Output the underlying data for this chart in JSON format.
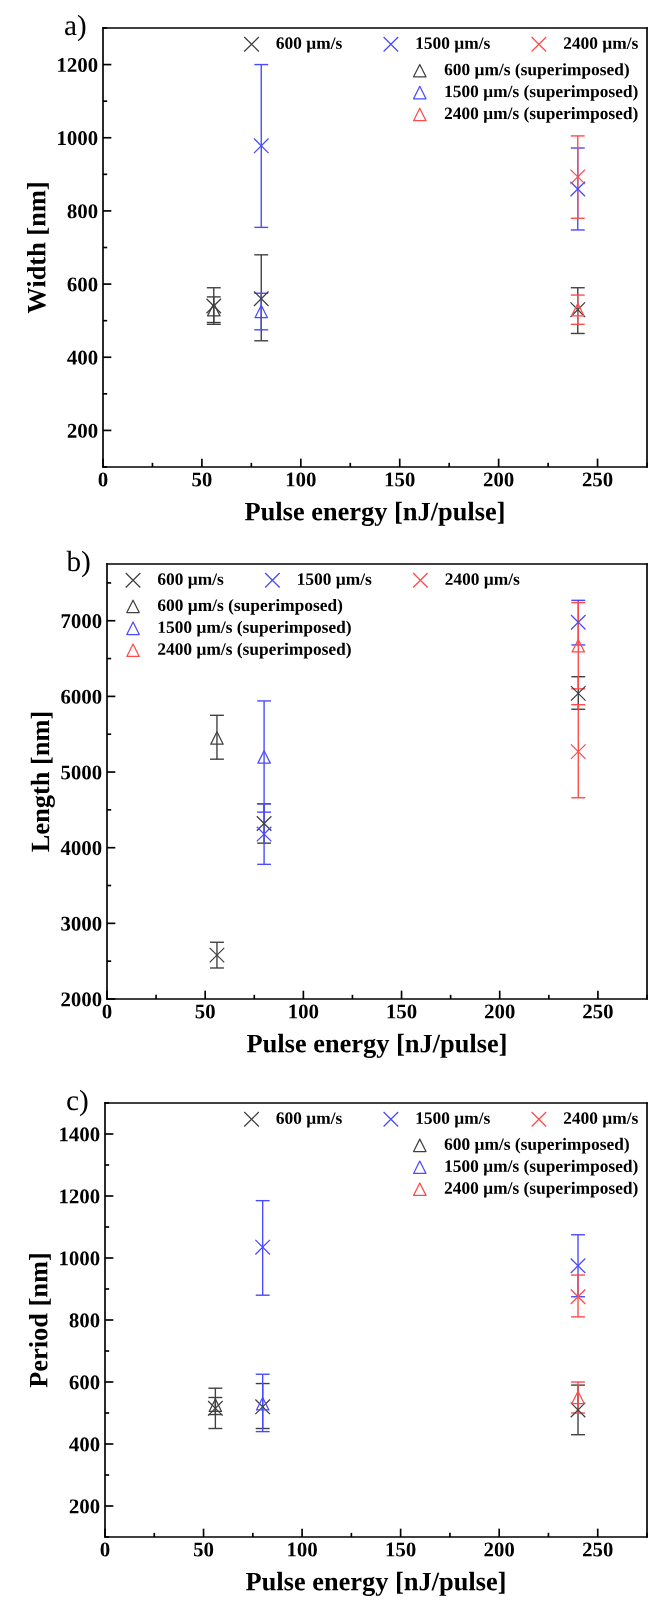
{
  "chart_data": [
    {
      "type": "scatter",
      "title": "a)",
      "xlabel": "Pulse energy [nJ/pulse]",
      "ylabel": "Width [nm]",
      "xlim": [
        0,
        275
      ],
      "xticks": [
        0,
        50,
        100,
        150,
        200,
        250
      ],
      "ylim": [
        100,
        1300
      ],
      "yticks": [
        200,
        400,
        600,
        800,
        1000,
        1200
      ],
      "legend": "top right",
      "grid": false,
      "series": [
        {
          "name": "600 µm/s",
          "color": "#404040",
          "marker": "cross",
          "x": [
            56,
            80,
            240
          ],
          "values": [
            540,
            560,
            530
          ],
          "errors": [
            [
              490,
              590
            ],
            [
              445,
              680
            ],
            [
              465,
              590
            ]
          ]
        },
        {
          "name": "1500 µm/s",
          "color": "#4a4aff",
          "marker": "cross",
          "x": [
            80,
            240
          ],
          "values": [
            978,
            860
          ],
          "errors": [
            [
              755,
              1200
            ],
            [
              748,
              972
            ]
          ]
        },
        {
          "name": "2400 µm/s",
          "color": "#ff4a4a",
          "marker": "cross",
          "x": [
            240
          ],
          "values": [
            893
          ],
          "errors": [
            [
              780,
              1005
            ]
          ]
        },
        {
          "name": "600 µm/s (superimposed)",
          "color": "#404040",
          "marker": "triangle",
          "x": [
            56
          ],
          "values": [
            530
          ],
          "errors": [
            [
              495,
              565
            ]
          ]
        },
        {
          "name": "1500 µm/s (superimposed)",
          "color": "#4a4aff",
          "marker": "triangle",
          "x": [
            80
          ],
          "values": [
            525
          ],
          "errors": [
            [
              475,
              575
            ]
          ]
        },
        {
          "name": "2400 µm/s (superimposed)",
          "color": "#ff4a4a",
          "marker": "triangle",
          "x": [
            240
          ],
          "values": [
            530
          ],
          "errors": [
            [
              490,
              570
            ]
          ]
        }
      ]
    },
    {
      "type": "scatter",
      "title": "b)",
      "xlabel": "Pulse energy [nJ/pulse]",
      "ylabel": "Length [nm]",
      "xlim": [
        0,
        275
      ],
      "xticks": [
        0,
        50,
        100,
        150,
        200,
        250
      ],
      "ylim": [
        2000,
        7750
      ],
      "yticks": [
        2000,
        3000,
        4000,
        5000,
        6000,
        7000
      ],
      "legend": "top left",
      "grid": false,
      "series": [
        {
          "name": "600 µm/s",
          "color": "#404040",
          "marker": "cross",
          "x": [
            56,
            80,
            240
          ],
          "values": [
            2580,
            4320,
            6040
          ],
          "errors": [
            [
              2410,
              2750
            ],
            [
              4060,
              4580
            ],
            [
              5830,
              6260
            ]
          ]
        },
        {
          "name": "1500 µm/s",
          "color": "#4a4aff",
          "marker": "cross",
          "x": [
            80,
            240
          ],
          "values": [
            4180,
            6980
          ],
          "errors": [
            [
              3780,
              4580
            ],
            [
              6680,
              7270
            ]
          ]
        },
        {
          "name": "2400 µm/s",
          "color": "#ff4a4a",
          "marker": "cross",
          "x": [
            240
          ],
          "values": [
            5270
          ],
          "errors": [
            [
              4660,
              5890
            ]
          ]
        },
        {
          "name": "600 µm/s (superimposed)",
          "color": "#404040",
          "marker": "triangle",
          "x": [
            56
          ],
          "values": [
            5450
          ],
          "errors": [
            [
              5170,
              5750
            ]
          ]
        },
        {
          "name": "1500 µm/s (superimposed)",
          "color": "#4a4aff",
          "marker": "triangle",
          "x": [
            80
          ],
          "values": [
            5200
          ],
          "errors": [
            [
              4470,
              5940
            ]
          ]
        },
        {
          "name": "2400 µm/s (superimposed)",
          "color": "#ff4a4a",
          "marker": "triangle",
          "x": [
            240
          ],
          "values": [
            6670
          ],
          "errors": [
            [
              6100,
              7240
            ]
          ]
        }
      ]
    },
    {
      "type": "scatter",
      "title": "c)",
      "xlabel": "Pulse energy [nJ/pulse]",
      "ylabel": "Period [nm]",
      "xlim": [
        0,
        275
      ],
      "xticks": [
        0,
        50,
        100,
        150,
        200,
        250
      ],
      "ylim": [
        100,
        1500
      ],
      "yticks": [
        200,
        400,
        600,
        800,
        1000,
        1200,
        1400
      ],
      "legend": "top right",
      "grid": false,
      "series": [
        {
          "name": "600 µm/s",
          "color": "#404040",
          "marker": "cross",
          "x": [
            56,
            80,
            240
          ],
          "values": [
            515,
            520,
            510
          ],
          "errors": [
            [
              450,
              580
            ],
            [
              450,
              595
            ],
            [
              430,
              590
            ]
          ]
        },
        {
          "name": "1500 µm/s",
          "color": "#4a4aff",
          "marker": "cross",
          "x": [
            80,
            240
          ],
          "values": [
            1035,
            975
          ],
          "errors": [
            [
              880,
              1185
            ],
            [
              875,
              1075
            ]
          ]
        },
        {
          "name": "2400 µm/s",
          "color": "#ff4a4a",
          "marker": "cross",
          "x": [
            240
          ],
          "values": [
            875
          ],
          "errors": [
            [
              810,
              945
            ]
          ]
        },
        {
          "name": "600 µm/s (superimposed)",
          "color": "#404040",
          "marker": "triangle",
          "x": [
            56
          ],
          "values": [
            525
          ],
          "errors": [
            [
              495,
              550
            ]
          ]
        },
        {
          "name": "1500 µm/s (superimposed)",
          "color": "#4a4aff",
          "marker": "triangle",
          "x": [
            80
          ],
          "values": [
            530
          ],
          "errors": [
            [
              440,
              625
            ]
          ]
        },
        {
          "name": "2400 µm/s (superimposed)",
          "color": "#ff4a4a",
          "marker": "triangle",
          "x": [
            240
          ],
          "values": [
            550
          ],
          "errors": [
            [
              500,
              600
            ]
          ]
        }
      ]
    }
  ]
}
